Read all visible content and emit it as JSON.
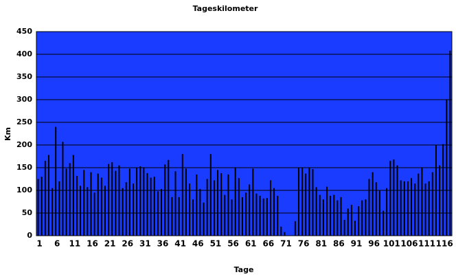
{
  "chart_data": {
    "type": "bar",
    "title": "Tageskilometer",
    "x_label": "Tage",
    "y_label": "Km",
    "categories": [
      "1",
      null,
      null,
      null,
      null,
      "6",
      null,
      null,
      null,
      null,
      "11",
      null,
      null,
      null,
      null,
      "16",
      null,
      null,
      null,
      null,
      "21",
      null,
      null,
      null,
      null,
      "26",
      null,
      null,
      null,
      null,
      "31",
      null,
      null,
      null,
      null,
      "36",
      null,
      null,
      null,
      null,
      "41",
      null,
      null,
      null,
      null,
      "46",
      null,
      null,
      null,
      null,
      "51",
      null,
      null,
      null,
      null,
      "56",
      null,
      null,
      null,
      null,
      "61",
      null,
      null,
      null,
      null,
      "66",
      null,
      null,
      null,
      null,
      "71",
      null,
      null,
      null,
      null,
      "76",
      null,
      null,
      null,
      null,
      "81",
      null,
      null,
      null,
      null,
      "86",
      null,
      null,
      null,
      null,
      "91",
      null,
      null,
      null,
      null,
      "96",
      null,
      null,
      null,
      null,
      "101",
      null,
      null,
      null,
      null,
      "106",
      null,
      null,
      null,
      null,
      "111",
      null,
      null,
      null,
      null,
      "116",
      null,
      null
    ],
    "values": [
      125,
      130,
      165,
      178,
      105,
      240,
      120,
      207,
      148,
      160,
      178,
      132,
      110,
      145,
      107,
      140,
      95,
      137,
      128,
      110,
      158,
      162,
      143,
      155,
      105,
      118,
      148,
      115,
      150,
      153,
      150,
      138,
      128,
      130,
      98,
      103,
      157,
      167,
      85,
      142,
      85,
      180,
      148,
      115,
      80,
      135,
      103,
      73,
      125,
      180,
      122,
      145,
      138,
      90,
      135,
      80,
      150,
      127,
      85,
      95,
      113,
      148,
      93,
      88,
      82,
      83,
      122,
      105,
      88,
      20,
      8,
      0,
      0,
      32,
      150,
      150,
      137,
      150,
      147,
      107,
      90,
      80,
      108,
      88,
      90,
      78,
      85,
      35,
      60,
      68,
      33,
      65,
      78,
      80,
      125,
      140,
      118,
      100,
      55,
      105,
      165,
      168,
      155,
      122,
      120,
      120,
      127,
      115,
      137,
      150,
      115,
      120,
      140,
      200,
      155,
      202,
      300,
      408
    ],
    "color": "#000000",
    "background": "#1a3cff",
    "ylim": [
      0,
      450
    ],
    "yticks": [
      0,
      50,
      100,
      150,
      200,
      250,
      300,
      350,
      400,
      450
    ],
    "grid": true
  }
}
